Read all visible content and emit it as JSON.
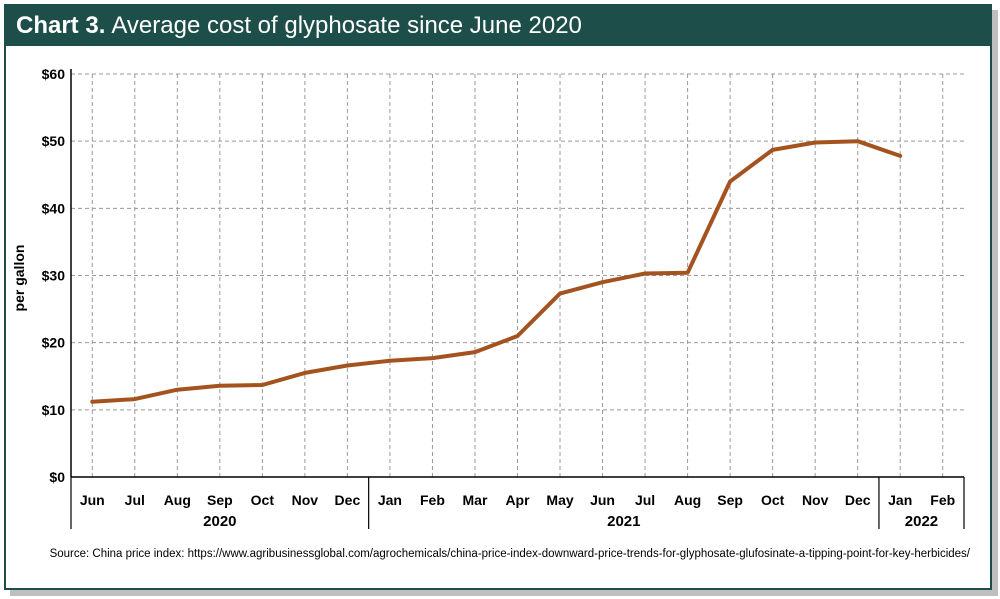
{
  "header": {
    "chart_number": "Chart 3.",
    "title": "Average cost of glyphosate since June 2020"
  },
  "source": "Source: China price index: https://www.agribusinessglobal.com/agrochemicals/china-price-index-downward-price-trends-for-glyphosate-glufosinate-a-tipping-point-for-key-herbicides/",
  "colors": {
    "header_bg": "#1d4e4a",
    "line": "#a4531f",
    "grid": "#9a9a9a"
  },
  "chart_data": {
    "type": "line",
    "title": "Average cost of glyphosate since June 2020",
    "ylabel": "per gallon",
    "xlabel": "",
    "ylim": [
      0,
      60
    ],
    "yticks": [
      0,
      10,
      20,
      30,
      40,
      50,
      60
    ],
    "ytick_labels": [
      "$0",
      "$10",
      "$20",
      "$30",
      "$40",
      "$50",
      "$60"
    ],
    "grid": true,
    "categories": [
      "Jun",
      "Jul",
      "Aug",
      "Sep",
      "Oct",
      "Nov",
      "Dec",
      "Jan",
      "Feb",
      "Mar",
      "Apr",
      "May",
      "Jun",
      "Jul",
      "Aug",
      "Sep",
      "Oct",
      "Nov",
      "Dec",
      "Jan",
      "Feb"
    ],
    "year_groups": [
      {
        "label": "2020",
        "start": 0,
        "end": 6
      },
      {
        "label": "2021",
        "start": 7,
        "end": 18
      },
      {
        "label": "2022",
        "start": 19,
        "end": 20
      }
    ],
    "series": [
      {
        "values": [
          11.2,
          11.6,
          13.0,
          13.6,
          13.7,
          15.5,
          16.6,
          17.3,
          17.7,
          18.6,
          21.0,
          27.3,
          29.0,
          30.3,
          30.4,
          44.0,
          48.7,
          49.8,
          50.0,
          47.8,
          null
        ]
      }
    ]
  }
}
